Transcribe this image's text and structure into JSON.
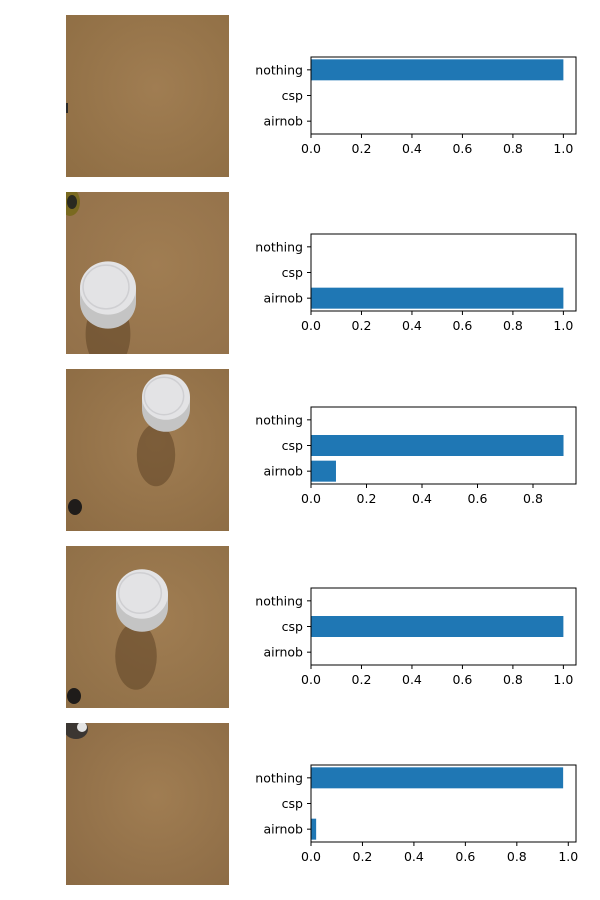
{
  "colors": {
    "bar": "#1f77b4",
    "axis": "#000000"
  },
  "chart_data": [
    {
      "type": "bar",
      "orientation": "horizontal",
      "categories": [
        "nothing",
        "csp",
        "airnob"
      ],
      "values": [
        1.0,
        0.0,
        0.0
      ],
      "xlim": [
        0,
        1.05
      ],
      "xticks": [
        "0.0",
        "0.2",
        "0.4",
        "0.6",
        "0.8",
        "1.0"
      ],
      "grid": false,
      "photo": {
        "scene": "empty",
        "tone": "#8f6e44"
      }
    },
    {
      "type": "bar",
      "orientation": "horizontal",
      "categories": [
        "nothing",
        "csp",
        "airnob"
      ],
      "values": [
        0.0,
        0.0,
        1.0
      ],
      "xlim": [
        0,
        1.05
      ],
      "xticks": [
        "0.0",
        "0.2",
        "0.4",
        "0.6",
        "0.8",
        "1.0"
      ],
      "grid": false,
      "photo": {
        "scene": "tube-left",
        "tone": "#93714a"
      }
    },
    {
      "type": "bar",
      "orientation": "horizontal",
      "categories": [
        "nothing",
        "csp",
        "airnob"
      ],
      "values": [
        0.0,
        0.91,
        0.09
      ],
      "xlim": [
        0,
        0.955
      ],
      "xticks": [
        "0.0",
        "0.2",
        "0.4",
        "0.6",
        "0.8"
      ],
      "grid": false,
      "photo": {
        "scene": "tube-top",
        "tone": "#8d6c44"
      }
    },
    {
      "type": "bar",
      "orientation": "horizontal",
      "categories": [
        "nothing",
        "csp",
        "airnob"
      ],
      "values": [
        0.0,
        1.0,
        0.0
      ],
      "xlim": [
        0,
        1.05
      ],
      "xticks": [
        "0.0",
        "0.2",
        "0.4",
        "0.6",
        "0.8",
        "1.0"
      ],
      "grid": false,
      "photo": {
        "scene": "tube-center",
        "tone": "#8f6f47"
      }
    },
    {
      "type": "bar",
      "orientation": "horizontal",
      "categories": [
        "nothing",
        "csp",
        "airnob"
      ],
      "values": [
        0.98,
        0.0,
        0.02
      ],
      "xlim": [
        0,
        1.03
      ],
      "xticks": [
        "0.0",
        "0.2",
        "0.4",
        "0.6",
        "0.8",
        "1.0"
      ],
      "grid": false,
      "photo": {
        "scene": "empty-corner",
        "tone": "#8c6b45"
      }
    }
  ]
}
